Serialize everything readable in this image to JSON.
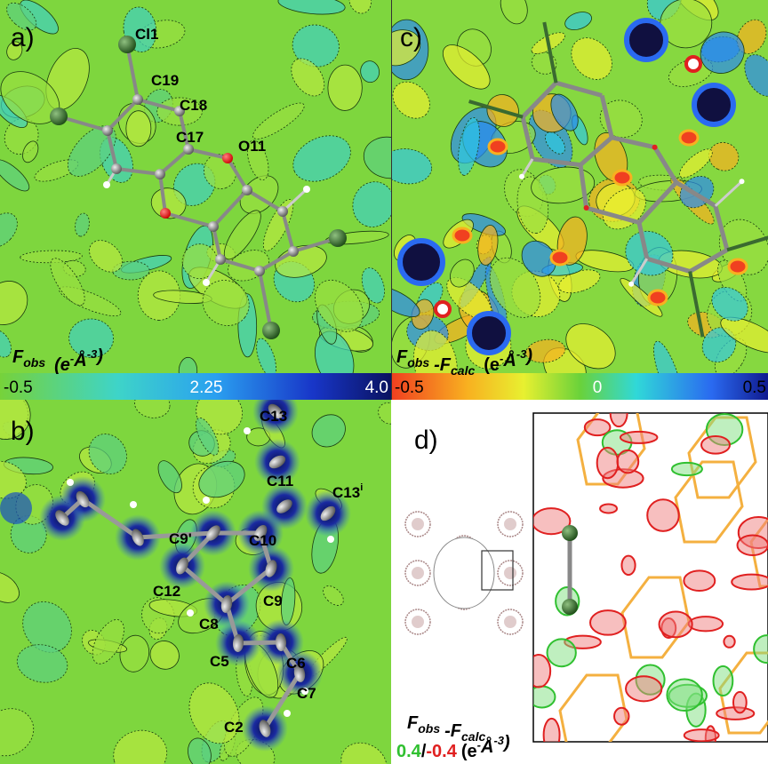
{
  "panel_a": {
    "label": "a)",
    "atoms": [
      {
        "text": "Cl1"
      },
      {
        "text": "C19"
      },
      {
        "text": "C18"
      },
      {
        "text": "C17"
      },
      {
        "text": "O11"
      }
    ],
    "map": {
      "symbol": "F",
      "subscript": "obs",
      "unit_open": "(e",
      "unit_sup_1": "-",
      "unit_mid": "Å",
      "unit_sup_2": "-3",
      "unit_close": ")"
    },
    "colorbar_ticks": [
      "-0.5",
      "2.25",
      "4.0"
    ]
  },
  "panel_b": {
    "label": "b)",
    "atoms": [
      {
        "text": "C13"
      },
      {
        "text": "C11"
      },
      {
        "text": "C13",
        "superscript": "i"
      },
      {
        "text": "C9'"
      },
      {
        "text": "C10"
      },
      {
        "text": "C12"
      },
      {
        "text": "C9"
      },
      {
        "text": "C8"
      },
      {
        "text": "C5"
      },
      {
        "text": "C6"
      },
      {
        "text": "C7"
      },
      {
        "text": "C2"
      }
    ]
  },
  "panel_c": {
    "label": "c)",
    "map": {
      "symbol": "F",
      "subscript": "obs",
      "minus_symbol": "-F",
      "subscript_2": "calc",
      "unit_open": "(e",
      "unit_sup_1": "-",
      "unit_mid": "Å",
      "unit_sup_2": "-3",
      "unit_close": ")"
    },
    "colorbar_ticks": [
      "-0.5",
      "0",
      "0.5"
    ]
  },
  "panel_d": {
    "label": "d)",
    "map": {
      "symbol": "F",
      "subscript": "obs",
      "minus_symbol": "-F",
      "subscript_2": "calc"
    },
    "levels": {
      "positive": "0.4",
      "separator": "/",
      "negative": "-0.4",
      "unit_open": "(e",
      "unit_sup_1": "-",
      "unit_mid": "Å",
      "unit_sup_2": "-3",
      "unit_close": ")"
    }
  }
}
